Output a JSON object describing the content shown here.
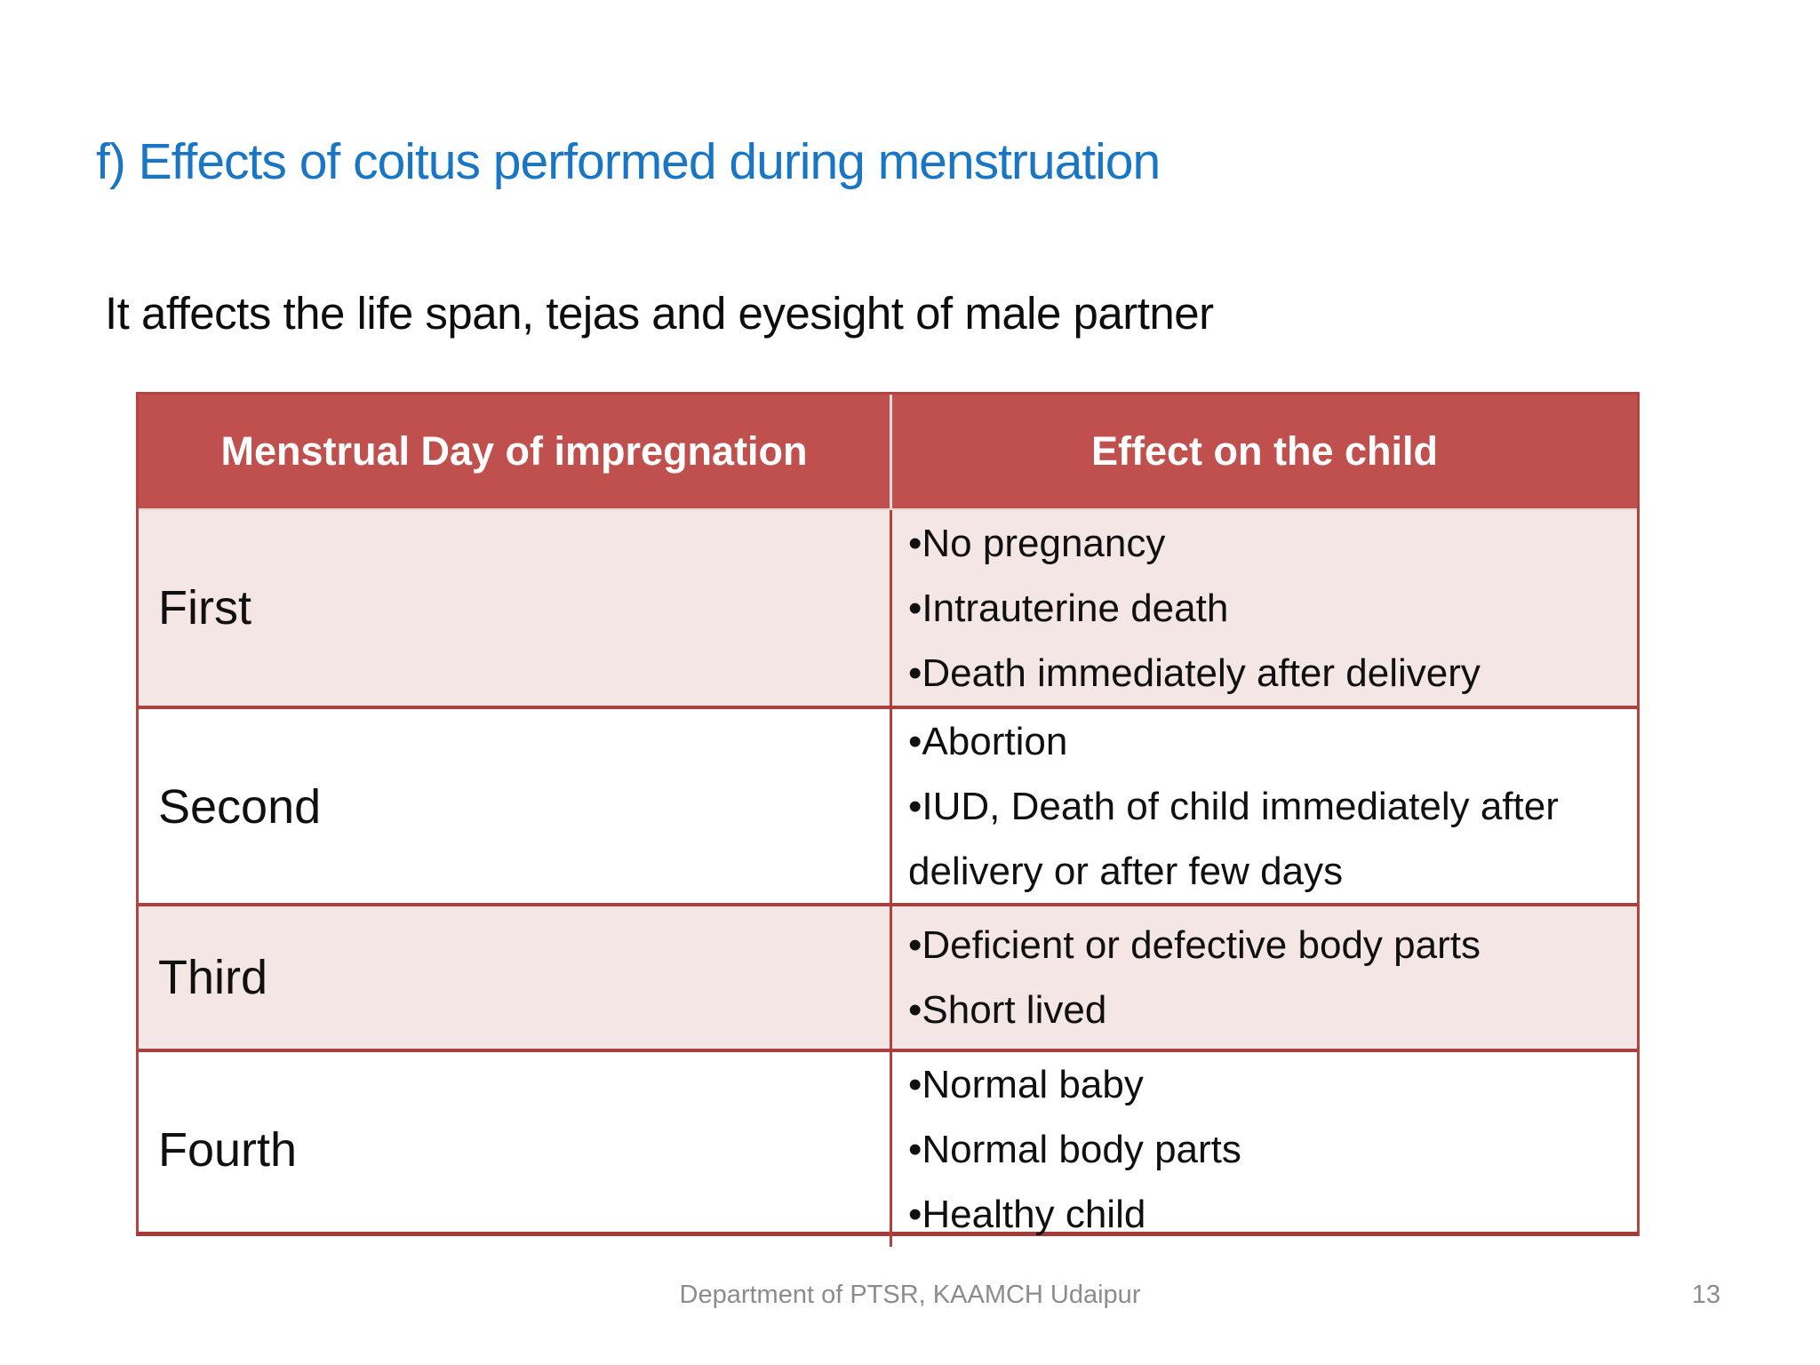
{
  "slide": {
    "title": "f) Effects of coitus performed during menstruation",
    "subtitle": "It affects the life span, tejas and eyesight of male partner",
    "footer": "Department of PTSR, KAAMCH Udaipur",
    "page_number": "13"
  },
  "table": {
    "headers": [
      "Menstrual Day of impregnation",
      "Effect on the child"
    ],
    "rows": [
      {
        "day": "First",
        "effects": [
          "•No pregnancy",
          "•Intrauterine death",
          "•Death immediately after delivery"
        ]
      },
      {
        "day": "Second",
        "effects": [
          "•Abortion",
          "•IUD, Death of child immediately after delivery or after few days"
        ]
      },
      {
        "day": "Third",
        "effects": [
          "•Deficient or defective body parts",
          "•Short lived"
        ]
      },
      {
        "day": "Fourth",
        "effects": [
          "•Normal baby",
          "•Normal body parts",
          "•Healthy child"
        ]
      }
    ]
  },
  "colors": {
    "title_blue": "#1976c5",
    "header_red": "#c0504d",
    "row_pink": "#f3e6e5",
    "border_red": "#b5423f",
    "footer_gray": "#8c8c8c"
  }
}
